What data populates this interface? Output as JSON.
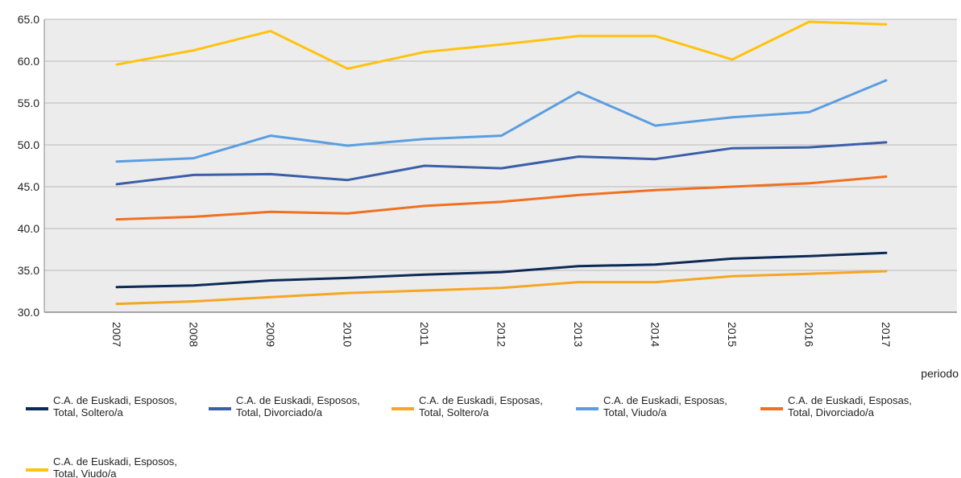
{
  "chart_data": {
    "type": "line",
    "x": [
      "2007",
      "2008",
      "2009",
      "2010",
      "2011",
      "2012",
      "2013",
      "2014",
      "2015",
      "2016",
      "2017"
    ],
    "xlabel": "periodo",
    "ylabel": "",
    "ylim": [
      30.0,
      65.0
    ],
    "yticks": [
      "30.0",
      "35.0",
      "40.0",
      "45.0",
      "50.0",
      "55.0",
      "60.0",
      "65.0"
    ],
    "grid": true,
    "legend_position": "bottom",
    "plot_background": "#ececec",
    "series": [
      {
        "name_lines": [
          "C.A. de Euskadi, Esposos,",
          "Total, Soltero/a"
        ],
        "color": "#0d2a57",
        "values": [
          33.0,
          33.2,
          33.8,
          34.1,
          34.5,
          34.8,
          35.5,
          35.7,
          36.4,
          36.7,
          37.1
        ]
      },
      {
        "name_lines": [
          "C.A. de Euskadi, Esposos,",
          "Total, Divorciado/a"
        ],
        "color": "#3a5fa8",
        "values": [
          45.3,
          46.4,
          46.5,
          45.8,
          47.5,
          47.2,
          48.6,
          48.3,
          49.6,
          49.7,
          50.3
        ]
      },
      {
        "name_lines": [
          "C.A. de Euskadi, Esposas,",
          "Total, Soltero/a"
        ],
        "color": "#f5a623",
        "values": [
          31.0,
          31.3,
          31.8,
          32.3,
          32.6,
          32.9,
          33.6,
          33.6,
          34.3,
          34.6,
          34.9
        ]
      },
      {
        "name_lines": [
          "C.A. de Euskadi, Esposas,",
          "Total, Viudo/a"
        ],
        "color": "#5b9ee0",
        "values": [
          48.0,
          48.4,
          51.1,
          49.9,
          50.7,
          51.1,
          56.3,
          52.3,
          53.3,
          53.9,
          57.7
        ]
      },
      {
        "name_lines": [
          "C.A. de Euskadi, Esposas,",
          "Total, Divorciado/a"
        ],
        "color": "#f07020",
        "values": [
          41.1,
          41.4,
          42.0,
          41.8,
          42.7,
          43.2,
          44.0,
          44.6,
          45.0,
          45.4,
          46.2
        ]
      },
      {
        "name_lines": [
          "C.A. de Euskadi, Esposos,",
          "Total, Viudo/a"
        ],
        "color": "#ffc20e",
        "values": [
          59.6,
          61.3,
          63.6,
          59.1,
          61.1,
          62.0,
          63.0,
          63.0,
          60.2,
          64.7,
          64.4
        ]
      }
    ]
  }
}
